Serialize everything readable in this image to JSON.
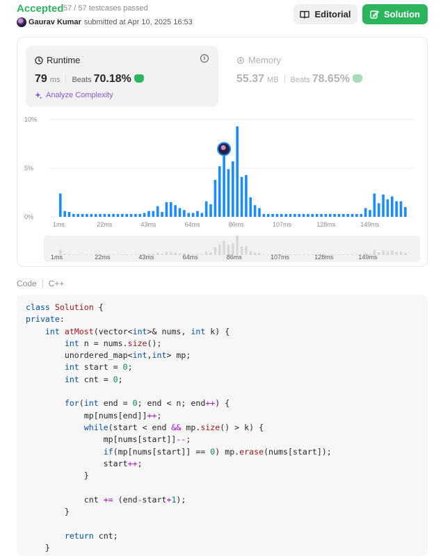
{
  "header": {
    "status": "Accepted",
    "testcases": "57 / 57 testcases passed",
    "user": "Gaurav Kumar",
    "submitted_text": "submitted at Apr 10, 2025 16:53",
    "editorial_label": "Editorial",
    "solution_label": "Solution"
  },
  "runtime": {
    "title": "Runtime",
    "value": "79",
    "unit": "ms",
    "beats_label": "Beats",
    "beats": "70.18%",
    "analyze_label": "Analyze Complexity"
  },
  "memory": {
    "title": "Memory",
    "value": "55.37",
    "unit": "MB",
    "beats_label": "Beats",
    "beats": "78.65%"
  },
  "chart_data": {
    "type": "bar",
    "x_tick_labels": [
      "1ms",
      "22ms",
      "43ms",
      "64ms",
      "86ms",
      "107ms",
      "128ms",
      "149ms"
    ],
    "y_tick_labels": [
      "10%",
      "5%",
      "0%"
    ],
    "ylim": [
      0,
      10
    ],
    "highlight_value_ms": 79,
    "values": [
      2.4,
      0.6,
      0.5,
      0.3,
      0.3,
      0.3,
      0.3,
      0.3,
      0.3,
      0.3,
      0.3,
      0.3,
      0.3,
      0.3,
      0.3,
      0.3,
      0.3,
      0.3,
      0.3,
      0.4,
      0.6,
      0.6,
      1.1,
      0.5,
      1.5,
      1.5,
      1.2,
      0.9,
      0.7,
      0.4,
      0.4,
      0.6,
      0.4,
      1.6,
      1.3,
      3.8,
      5.2,
      6.9,
      4.9,
      5.7,
      9.3,
      4.1,
      4.3,
      2.0,
      1.2,
      0.9,
      0.3,
      0.3,
      0.3,
      0.3,
      0.3,
      0.3,
      0.3,
      0.3,
      0.3,
      0.3,
      0.3,
      0.3,
      0.3,
      0.3,
      0.3,
      0.3,
      0.3,
      0.3,
      0.3,
      0.3,
      0.3,
      0.3,
      0.3,
      0.9,
      0.7,
      2.4,
      1.4,
      2.3,
      1.8,
      2.1,
      1.6,
      1.6,
      1.0
    ]
  },
  "code": {
    "tab_label": "Code",
    "language": "C++"
  }
}
